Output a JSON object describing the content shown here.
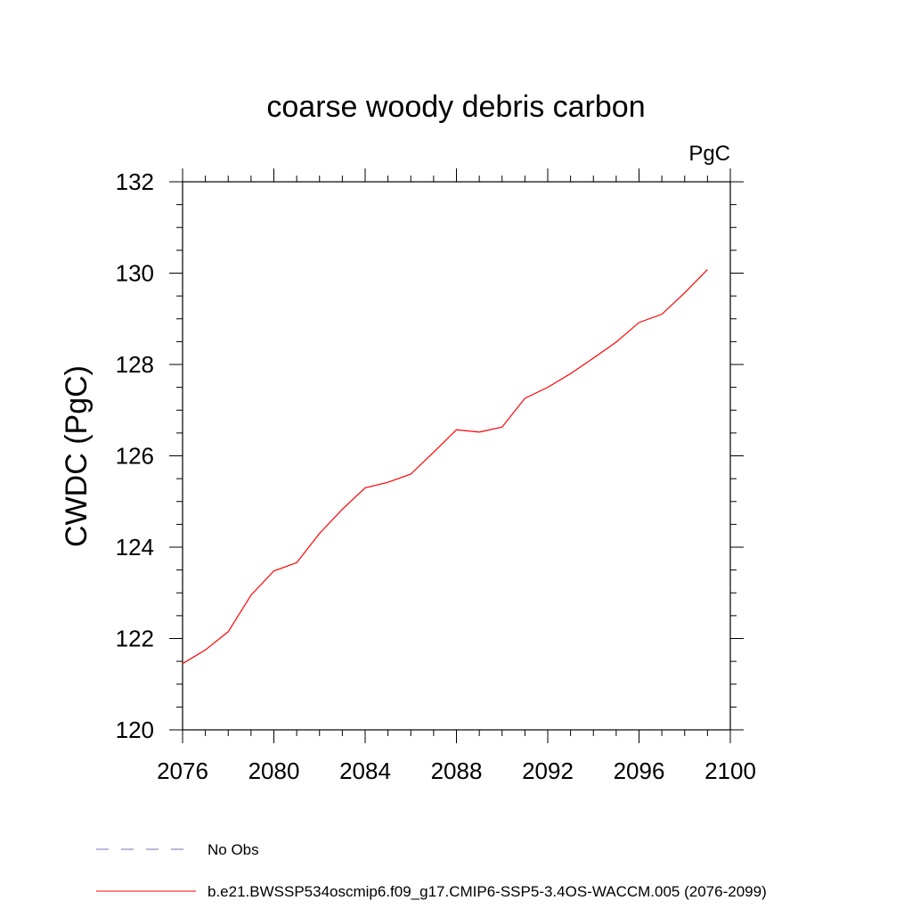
{
  "chart_data": {
    "type": "line",
    "title": "coarse woody debris carbon",
    "units_label": "PgC",
    "ylabel": "CWDC  (PgC)",
    "xlabel": "",
    "xlim": [
      2076,
      2100
    ],
    "ylim": [
      120,
      132
    ],
    "x_ticks": [
      "2076",
      "2080",
      "2084",
      "2088",
      "2092",
      "2096",
      "2100"
    ],
    "y_ticks": [
      "120",
      "122",
      "124",
      "126",
      "128",
      "130",
      "132"
    ],
    "grid": false,
    "series": [
      {
        "name": "b.e21.BWSSP534oscmip6.f09_g17.CMIP6-SSP5-3.4OS-WACCM.005 (2076-2099)",
        "color": "#ff0000",
        "x": [
          2076,
          2077,
          2078,
          2079,
          2080,
          2081,
          2082,
          2083,
          2084,
          2085,
          2086,
          2087,
          2088,
          2089,
          2090,
          2091,
          2092,
          2093,
          2094,
          2095,
          2096,
          2097,
          2098,
          2099
        ],
        "y": [
          121.45,
          121.75,
          122.15,
          122.95,
          123.48,
          123.66,
          124.3,
          124.83,
          125.3,
          125.42,
          125.6,
          126.08,
          126.57,
          126.52,
          126.63,
          127.26,
          127.5,
          127.8,
          128.14,
          128.49,
          128.92,
          129.1,
          129.57,
          130.08
        ]
      }
    ],
    "legend": {
      "placement": "bottom",
      "entries": [
        {
          "label": "No Obs",
          "color": "#7b6fb0",
          "style": "dashed"
        },
        {
          "label": "b.e21.BWSSP534oscmip6.f09_g17.CMIP6-SSP5-3.4OS-WACCM.005 (2076-2099)",
          "color": "#ff0000",
          "style": "solid"
        }
      ]
    }
  }
}
